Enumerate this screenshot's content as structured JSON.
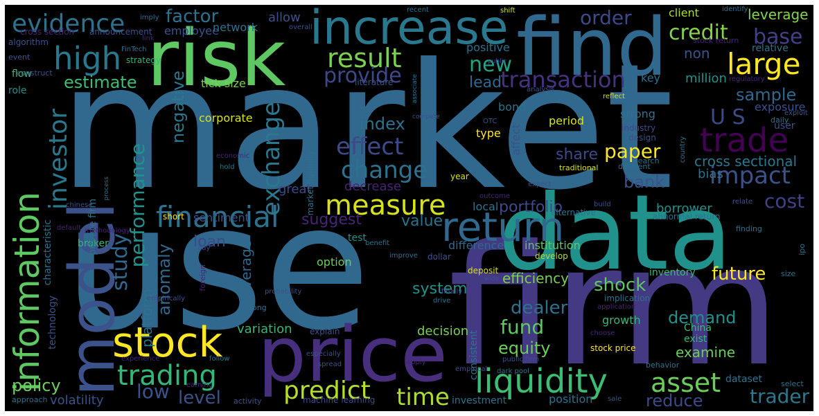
{
  "words": [
    {
      "text": "market",
      "color": "#31688e"
    },
    {
      "text": "use",
      "color": "#31688e"
    },
    {
      "text": "firm",
      "color": "#443983"
    },
    {
      "text": "data",
      "color": "#21918c"
    },
    {
      "text": "risk",
      "color": "#5ec962"
    },
    {
      "text": "find",
      "color": "#31688e"
    },
    {
      "text": "price",
      "color": "#472f7d"
    },
    {
      "text": "model",
      "color": "#3b528b"
    },
    {
      "text": "increase",
      "color": "#2a788e"
    },
    {
      "text": "return",
      "color": "#31688e"
    },
    {
      "text": "stock",
      "color": "#fde725"
    },
    {
      "text": "liquidity",
      "color": "#3dbc74"
    },
    {
      "text": "information",
      "color": "#5ec962"
    },
    {
      "text": "trade",
      "color": "#440154"
    },
    {
      "text": "financial",
      "color": "#2c728e"
    },
    {
      "text": "large",
      "color": "#fde725"
    },
    {
      "text": "high",
      "color": "#2a788e"
    },
    {
      "text": "measure",
      "color": "#d8e219"
    },
    {
      "text": "trading",
      "color": "#35b779"
    },
    {
      "text": "asset",
      "color": "#6ccd5a"
    },
    {
      "text": "investor",
      "color": "#2a788e"
    },
    {
      "text": "predict",
      "color": "#b5de2b"
    },
    {
      "text": "time",
      "color": "#addc30"
    },
    {
      "text": "result",
      "color": "#7ad151"
    },
    {
      "text": "change",
      "color": "#2c728e"
    },
    {
      "text": "effect",
      "color": "#3e4989"
    },
    {
      "text": "transaction",
      "color": "#46327e"
    },
    {
      "text": "exchange",
      "color": "#2a788e"
    },
    {
      "text": "evidence",
      "color": "#2c728e"
    },
    {
      "text": "impact",
      "color": "#3b528b"
    },
    {
      "text": "study",
      "color": "#31688e"
    },
    {
      "text": "provide",
      "color": "#3e4989"
    },
    {
      "text": "new",
      "color": "#20a486"
    },
    {
      "text": "credit",
      "color": "#86d549"
    },
    {
      "text": "base",
      "color": "#424086"
    },
    {
      "text": "order",
      "color": "#3e4989"
    },
    {
      "text": "factor",
      "color": "#2c728e"
    },
    {
      "text": "performance",
      "color": "#21918c"
    },
    {
      "text": "paper",
      "color": "#fde725"
    },
    {
      "text": "fund",
      "color": "#5ec962"
    },
    {
      "text": "dealer",
      "color": "#2c728e"
    },
    {
      "text": "shock",
      "color": "#5ec962"
    },
    {
      "text": "cost",
      "color": "#424086"
    },
    {
      "text": "trader",
      "color": "#2a788e"
    },
    {
      "text": "U S",
      "color": "#3e4989"
    },
    {
      "text": "portfolio",
      "color": "#3e4989"
    },
    {
      "text": "low",
      "color": "#3b528b"
    },
    {
      "text": "level",
      "color": "#3b528b"
    },
    {
      "text": "policy",
      "color": "#6ccd5a"
    },
    {
      "text": "anomaly",
      "color": "#31688e"
    },
    {
      "text": "estimate",
      "color": "#3dbc74"
    },
    {
      "text": "negative",
      "color": "#2a788e"
    },
    {
      "text": "value",
      "color": "#2c728e"
    },
    {
      "text": "index",
      "color": "#2c728e"
    },
    {
      "text": "share",
      "color": "#3e4989"
    },
    {
      "text": "equity",
      "color": "#6ccd5a"
    },
    {
      "text": "bank",
      "color": "#3b528b"
    },
    {
      "text": "future",
      "color": "#fde725"
    },
    {
      "text": "demand",
      "color": "#21918c"
    },
    {
      "text": "reduce",
      "color": "#3e4989"
    },
    {
      "text": "sample",
      "color": "#31688e"
    },
    {
      "text": "suggest",
      "color": "#482475"
    },
    {
      "text": "system",
      "color": "#21918c"
    },
    {
      "text": "volatility",
      "color": "#3b528b"
    },
    {
      "text": "average",
      "color": "#31688e"
    },
    {
      "text": "loan",
      "color": "#3e4989"
    },
    {
      "text": "cross sectional",
      "color": "#2a788e"
    },
    {
      "text": "efficiency",
      "color": "#7ad151"
    },
    {
      "text": "platform",
      "color": "#2c728e"
    },
    {
      "text": "leverage",
      "color": "#86d549"
    },
    {
      "text": "lead",
      "color": "#31688e"
    },
    {
      "text": "examine",
      "color": "#6ccd5a"
    },
    {
      "text": "decrease",
      "color": "#482475"
    },
    {
      "text": "allow",
      "color": "#3b528b"
    },
    {
      "text": "employee",
      "color": "#3b528b"
    },
    {
      "text": "network",
      "color": "#2c728e"
    },
    {
      "text": "non",
      "color": "#3b528b"
    },
    {
      "text": "million",
      "color": "#21918c"
    },
    {
      "text": "bias",
      "color": "#2c728e"
    },
    {
      "text": "decision",
      "color": "#7ad151"
    },
    {
      "text": "variation",
      "color": "#35b779"
    },
    {
      "text": "position",
      "color": "#2c728e"
    },
    {
      "text": "difference",
      "color": "#31688e"
    },
    {
      "text": "institution",
      "color": "#5ec962"
    },
    {
      "text": "great",
      "color": "#3e4989"
    },
    {
      "text": "sentiment",
      "color": "#3b528b"
    },
    {
      "text": "local",
      "color": "#2c728e"
    },
    {
      "text": "option",
      "color": "#6ccd5a"
    },
    {
      "text": "borrower",
      "color": "#21918c"
    },
    {
      "text": "growth",
      "color": "#35b779"
    },
    {
      "text": "corporate",
      "color": "#d8e219"
    },
    {
      "text": "tick size",
      "color": "#7ad151"
    },
    {
      "text": "positive",
      "color": "#2c728e"
    },
    {
      "text": "client",
      "color": "#addc30"
    },
    {
      "text": "exposure",
      "color": "#3b528b"
    },
    {
      "text": "key",
      "color": "#2c728e"
    },
    {
      "text": "relative",
      "color": "#2c728e"
    },
    {
      "text": "strong",
      "color": "#2c728e"
    },
    {
      "text": "bond",
      "color": "#2c728e"
    },
    {
      "text": "type",
      "color": "#fde725"
    },
    {
      "text": "affect",
      "color": "#3b528b"
    },
    {
      "text": "period",
      "color": "#d8e219"
    },
    {
      "text": "user",
      "color": "#3b528b"
    },
    {
      "text": "inventory",
      "color": "#3dbc74"
    },
    {
      "text": "dataset",
      "color": "#2c728e"
    },
    {
      "text": "exist",
      "color": "#35b779"
    },
    {
      "text": "China",
      "color": "#3dbc74"
    },
    {
      "text": "characteristic",
      "color": "#2c728e"
    },
    {
      "text": "technology",
      "color": "#3b528b"
    },
    {
      "text": "broker",
      "color": "#35b779"
    },
    {
      "text": "test",
      "color": "#21918c"
    },
    {
      "text": "role",
      "color": "#21918c"
    },
    {
      "text": "flow",
      "color": "#3dbc74"
    },
    {
      "text": "short",
      "color": "#fde725"
    },
    {
      "text": "explain",
      "color": "#3b528b"
    },
    {
      "text": "investment",
      "color": "#2c728e"
    },
    {
      "text": "machine learning",
      "color": "#3e4989"
    },
    {
      "text": "stock price",
      "color": "#fde725"
    },
    {
      "text": "market liquidity",
      "color": "#2c728e"
    },
    {
      "text": "private firm",
      "color": "#2c728e"
    },
    {
      "text": "consistent",
      "color": "#2c728e"
    },
    {
      "text": "implication",
      "color": "#2c728e"
    },
    {
      "text": "design",
      "color": "#3b528b"
    },
    {
      "text": "industry",
      "color": "#3e4989"
    },
    {
      "text": "develop",
      "color": "#b5de2b"
    },
    {
      "text": "dollar",
      "color": "#3b528b"
    },
    {
      "text": "deposit",
      "color": "#d8e219"
    },
    {
      "text": "abnormal return",
      "color": "#2c728e"
    },
    {
      "text": "cross section",
      "color": "#482475"
    },
    {
      "text": "announcement",
      "color": "#3b528b"
    },
    {
      "text": "algorithm",
      "color": "#3b528b"
    },
    {
      "text": "strategy",
      "color": "#35b779"
    },
    {
      "text": "construct",
      "color": "#3b528b"
    },
    {
      "text": "event",
      "color": "#3b528b"
    },
    {
      "text": "literature",
      "color": "#3b528b"
    },
    {
      "text": "year",
      "color": "#d8e219"
    },
    {
      "text": "alternative",
      "color": "#2c728e"
    },
    {
      "text": "traditional",
      "color": "#d8e219"
    },
    {
      "text": "different",
      "color": "#2c728e"
    },
    {
      "text": "search",
      "color": "#2c728e"
    },
    {
      "text": "finding",
      "color": "#2c728e"
    },
    {
      "text": "ipo",
      "color": "#2c728e"
    },
    {
      "text": "daily",
      "color": "#2c728e"
    },
    {
      "text": "select",
      "color": "#2c728e"
    },
    {
      "text": "size",
      "color": "#2c728e"
    },
    {
      "text": "behavior",
      "color": "#2c728e"
    },
    {
      "text": "stock return",
      "color": "#482475"
    },
    {
      "text": "regulatory",
      "color": "#482475"
    },
    {
      "text": "identify",
      "color": "#2c728e"
    },
    {
      "text": "shift",
      "color": "#d8e219"
    },
    {
      "text": "recent",
      "color": "#2c728e"
    },
    {
      "text": "imply",
      "color": "#2c728e"
    },
    {
      "text": "overall",
      "color": "#3b528b"
    },
    {
      "text": "FinTech",
      "color": "#2c728e"
    },
    {
      "text": "public",
      "color": "#3b528b"
    },
    {
      "text": "analysis",
      "color": "#3b528b"
    },
    {
      "text": "reflect",
      "color": "#d8e219"
    },
    {
      "text": "exploit",
      "color": "#3b528b"
    },
    {
      "text": "country",
      "color": "#2c728e"
    },
    {
      "text": "expect",
      "color": "#3b528b"
    },
    {
      "text": "build",
      "color": "#3b528b"
    },
    {
      "text": "relate",
      "color": "#3b528b"
    },
    {
      "text": "outcome",
      "color": "#482475"
    },
    {
      "text": "choose",
      "color": "#482475"
    },
    {
      "text": "application",
      "color": "#482475"
    },
    {
      "text": "finally",
      "color": "#3b528b"
    },
    {
      "text": "drive",
      "color": "#2c728e"
    },
    {
      "text": "wide",
      "color": "#3b528b"
    },
    {
      "text": "improve",
      "color": "#2c728e"
    },
    {
      "text": "probability",
      "color": "#3b528b"
    },
    {
      "text": "benefit",
      "color": "#2c728e"
    },
    {
      "text": "empirical",
      "color": "#3b528b"
    },
    {
      "text": "dark pool",
      "color": "#2c728e"
    },
    {
      "text": "public firm",
      "color": "#3b528b"
    },
    {
      "text": "apply",
      "color": "#482475"
    },
    {
      "text": "spread",
      "color": "#3b528b"
    },
    {
      "text": "especially",
      "color": "#3b528b"
    },
    {
      "text": "experience",
      "color": "#482475"
    },
    {
      "text": "follow",
      "color": "#2c728e"
    },
    {
      "text": "earning",
      "color": "#482475"
    },
    {
      "text": "activity",
      "color": "#3b528b"
    },
    {
      "text": "approach",
      "color": "#2c728e"
    },
    {
      "text": "sale",
      "color": "#3b528b"
    },
    {
      "text": "empirically",
      "color": "#3b528b"
    },
    {
      "text": "long",
      "color": "#2c728e"
    },
    {
      "text": "foreign",
      "color": "#482475"
    },
    {
      "text": "day",
      "color": "#3b528b"
    },
    {
      "text": "default",
      "color": "#482475"
    },
    {
      "text": "methodology",
      "color": "#482475"
    },
    {
      "text": "chinese",
      "color": "#3b528b"
    },
    {
      "text": "process",
      "color": "#2c728e"
    },
    {
      "text": "economic",
      "color": "#482475"
    },
    {
      "text": "hold",
      "color": "#2c728e"
    },
    {
      "text": "compete",
      "color": "#3b528b"
    },
    {
      "text": "associate",
      "color": "#2c728e"
    },
    {
      "text": "link",
      "color": "#482475"
    },
    {
      "text": "OTC",
      "color": "#3b528b"
    }
  ]
}
